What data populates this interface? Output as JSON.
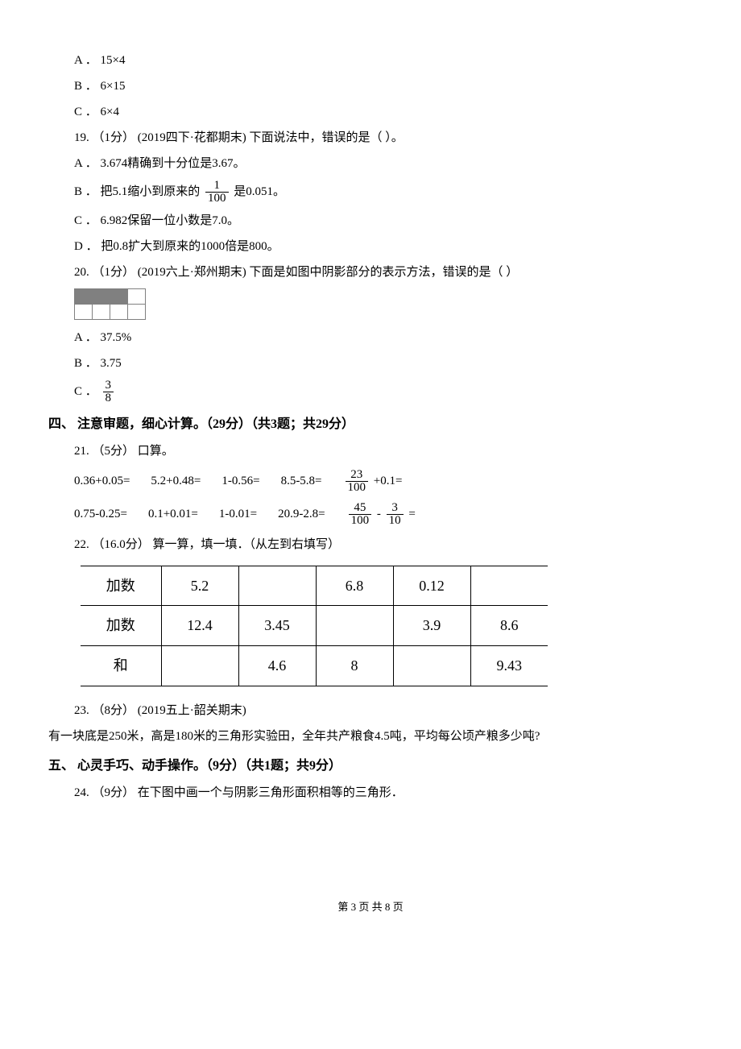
{
  "q18_options": {
    "a": "A ．  15×4",
    "b": "B ．  6×15",
    "c": "C ．  6×4"
  },
  "q19": {
    "stem": "19.   （1分）  (2019四下·花都期末)   下面说法中，错误的是（      ）。",
    "a": "A ．  3.674精确到十分位是3.67。",
    "b_pre": "B ．   把5.1缩小到原来的 ",
    "b_frac_num": "1",
    "b_frac_den": "100",
    "b_post": "  是0.051。",
    "c": "C ．  6.982保留一位小数是7.0。",
    "d": "D ．   把0.8扩大到原来的1000倍是800。"
  },
  "q20": {
    "stem": "20.   （1分）  (2019六上·郑州期末)   下面是如图中阴影部分的表示方法，错误的是（      ）",
    "a": "A ．  37.5%",
    "b": "B ．  3.75",
    "c_pre": "C ． ",
    "c_num": "3",
    "c_den": "8"
  },
  "section4": "四、  注意审题，细心计算。（29分）（共3题；共29分）",
  "q21": {
    "stem": "21.   （5分）   口算。",
    "row1": {
      "c1": "0.36+0.05=",
      "c2": "5.2+0.48=",
      "c3": "1-0.56=",
      "c4": "8.5-5.8=",
      "c5_num": "23",
      "c5_den": "100",
      "c5_post": " +0.1="
    },
    "row2": {
      "c1": "0.75-0.25=",
      "c2": "0.1+0.01=",
      "c3": "1-0.01=",
      "c4": "20.9-2.8=",
      "c5a_num": "45",
      "c5a_den": "100",
      "mid": " - ",
      "c5b_num": "3",
      "c5b_den": "10",
      "c5_post": "  ="
    }
  },
  "q22": {
    "stem": "22.   （16.0分）   算一算，填一填．（从左到右填写）",
    "headers": [
      "加数",
      "加数",
      "和"
    ],
    "rows": [
      [
        "加数",
        "5.2",
        "",
        "6.8",
        "0.12",
        ""
      ],
      [
        "加数",
        "12.4",
        "3.45",
        "",
        "3.9",
        "8.6"
      ],
      [
        "和",
        "",
        "4.6",
        "8",
        "",
        "9.43"
      ]
    ]
  },
  "q23": {
    "stem": "23.   （8分）  (2019五上·韶关期末)",
    "body": "有一块底是250米，高是180米的三角形实验田，全年共产粮食4.5吨，平均每公顷产粮多少吨?"
  },
  "section5": "五、  心灵手巧、动手操作。（9分）（共1题；共9分）",
  "q24": "24.   （9分）   在下图中画一个与阴影三角形面积相等的三角形．",
  "footer": "第 3 页 共 8 页"
}
